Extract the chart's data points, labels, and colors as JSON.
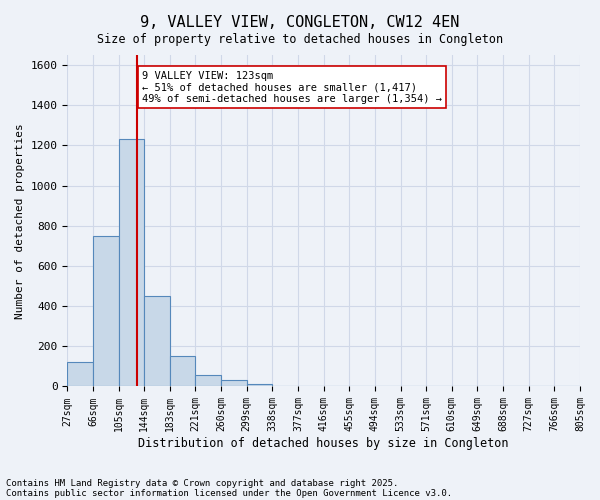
{
  "title": "9, VALLEY VIEW, CONGLETON, CW12 4EN",
  "subtitle": "Size of property relative to detached houses in Congleton",
  "xlabel": "Distribution of detached houses by size in Congleton",
  "ylabel": "Number of detached properties",
  "bin_labels": [
    "27sqm",
    "66sqm",
    "105sqm",
    "144sqm",
    "183sqm",
    "221sqm",
    "260sqm",
    "299sqm",
    "338sqm",
    "377sqm",
    "416sqm",
    "455sqm",
    "494sqm",
    "533sqm",
    "571sqm",
    "610sqm",
    "649sqm",
    "688sqm",
    "727sqm",
    "766sqm",
    "805sqm"
  ],
  "bar_values": [
    120,
    750,
    1230,
    450,
    150,
    55,
    30,
    10,
    0,
    0,
    0,
    0,
    0,
    0,
    0,
    0,
    0,
    0,
    0,
    0
  ],
  "bar_color": "#c8d8e8",
  "bar_edge_color": "#5588bb",
  "grid_color": "#d0d8e8",
  "background_color": "#eef2f8",
  "vline_x": 2.72,
  "vline_color": "#cc0000",
  "annotation_text": "9 VALLEY VIEW: 123sqm\n← 51% of detached houses are smaller (1,417)\n49% of semi-detached houses are larger (1,354) →",
  "annotation_box_color": "#ffffff",
  "annotation_box_edge": "#cc0000",
  "ylim": [
    0,
    1650
  ],
  "yticks": [
    0,
    200,
    400,
    600,
    800,
    1000,
    1200,
    1400,
    1600
  ],
  "footnote1": "Contains HM Land Registry data © Crown copyright and database right 2025.",
  "footnote2": "Contains public sector information licensed under the Open Government Licence v3.0."
}
